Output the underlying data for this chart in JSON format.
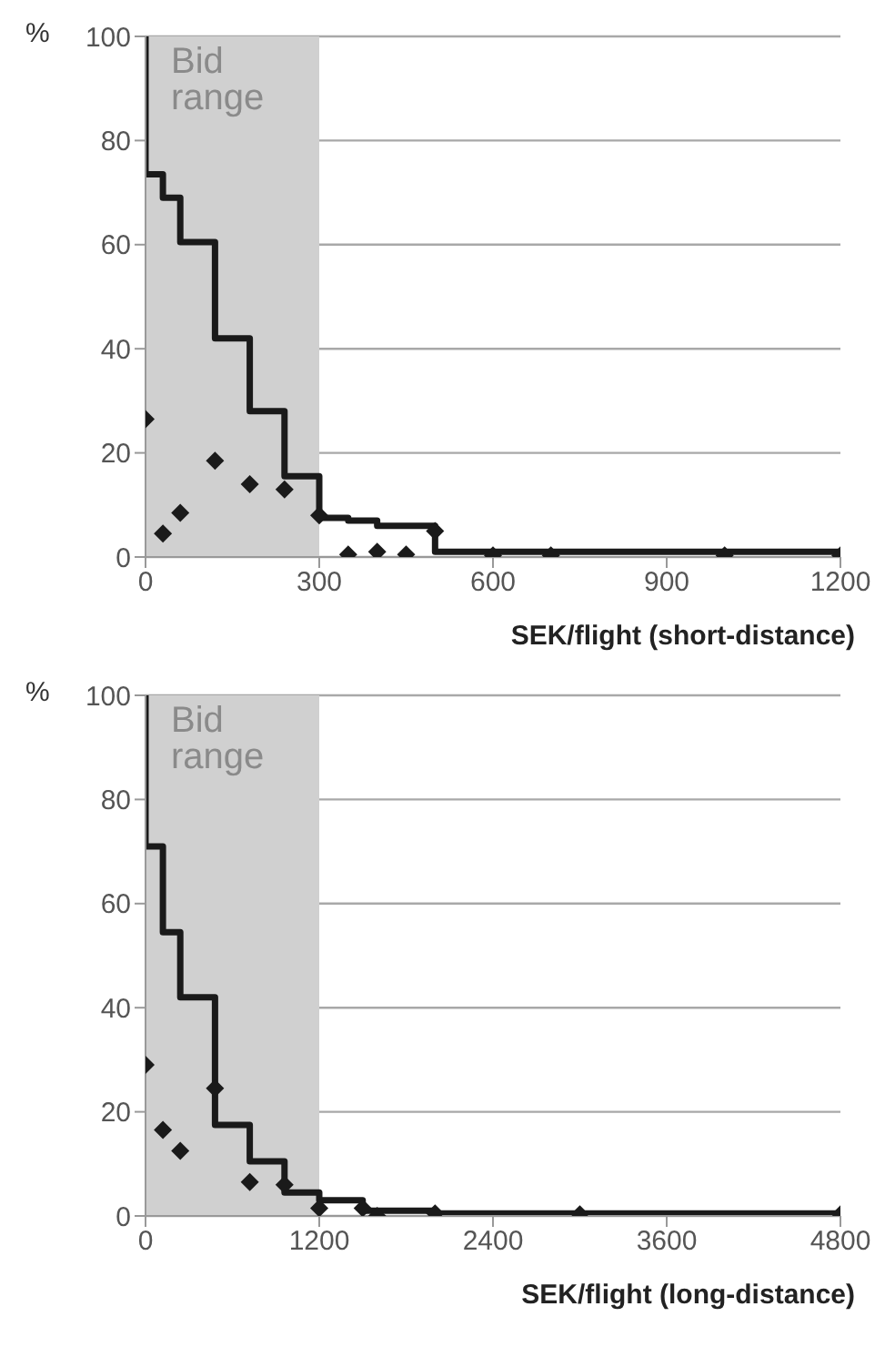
{
  "chart_data": [
    {
      "type": "line",
      "xlabel": "SEK/flight (short-distance)",
      "ylabel": "%",
      "xlim": [
        0,
        1200
      ],
      "xticks": [
        0,
        300,
        600,
        900,
        1200
      ],
      "ylim": [
        0,
        100
      ],
      "yticks": [
        0,
        20,
        40,
        60,
        80,
        100
      ],
      "grid": "y",
      "bands": [
        {
          "axis": "x",
          "from": 0,
          "to": 300,
          "label": "Bid range",
          "color": "#d0d0d0"
        }
      ],
      "series": [
        {
          "type": "step",
          "color": "#1a1a1a",
          "marker": "none",
          "x": [
            0,
            0,
            30,
            60,
            120,
            180,
            240,
            300,
            350,
            400,
            500,
            1200
          ],
          "values": [
            100,
            73.5,
            69,
            60.5,
            42,
            28,
            15.5,
            7.5,
            7,
            6,
            1,
            1
          ]
        },
        {
          "type": "scatter",
          "color": "#1a1a1a",
          "marker": "diamond",
          "x": [
            0,
            30,
            60,
            120,
            180,
            240,
            300,
            350,
            400,
            450,
            500,
            600,
            700,
            1000,
            1200
          ],
          "values": [
            26.5,
            4.5,
            8.5,
            18.5,
            14,
            13,
            8,
            0.5,
            1,
            0.5,
            5,
            0.3,
            0.3,
            0.3,
            0.3
          ]
        }
      ]
    },
    {
      "type": "line",
      "xlabel": "SEK/flight (long-distance)",
      "ylabel": "%",
      "xlim": [
        0,
        4800
      ],
      "xticks": [
        0,
        1200,
        2400,
        3600,
        4800
      ],
      "ylim": [
        0,
        100
      ],
      "yticks": [
        0,
        20,
        40,
        60,
        80,
        100
      ],
      "grid": "y",
      "bands": [
        {
          "axis": "x",
          "from": 0,
          "to": 1200,
          "label": "Bid range",
          "color": "#d0d0d0"
        }
      ],
      "series": [
        {
          "type": "step",
          "color": "#1a1a1a",
          "marker": "none",
          "x": [
            0,
            0,
            120,
            240,
            480,
            720,
            960,
            1200,
            1500,
            2000,
            4800
          ],
          "values": [
            100,
            71,
            54.5,
            42,
            17.5,
            10.5,
            4.5,
            3,
            1,
            0.5,
            0.5
          ]
        },
        {
          "type": "scatter",
          "color": "#1a1a1a",
          "marker": "diamond",
          "x": [
            0,
            120,
            240,
            480,
            720,
            960,
            1200,
            1500,
            1600,
            2000,
            3000,
            4800
          ],
          "values": [
            29,
            16.5,
            12.5,
            24.5,
            6.5,
            6,
            1.5,
            1.5,
            0,
            0.5,
            0.3,
            0.3
          ]
        }
      ]
    }
  ]
}
